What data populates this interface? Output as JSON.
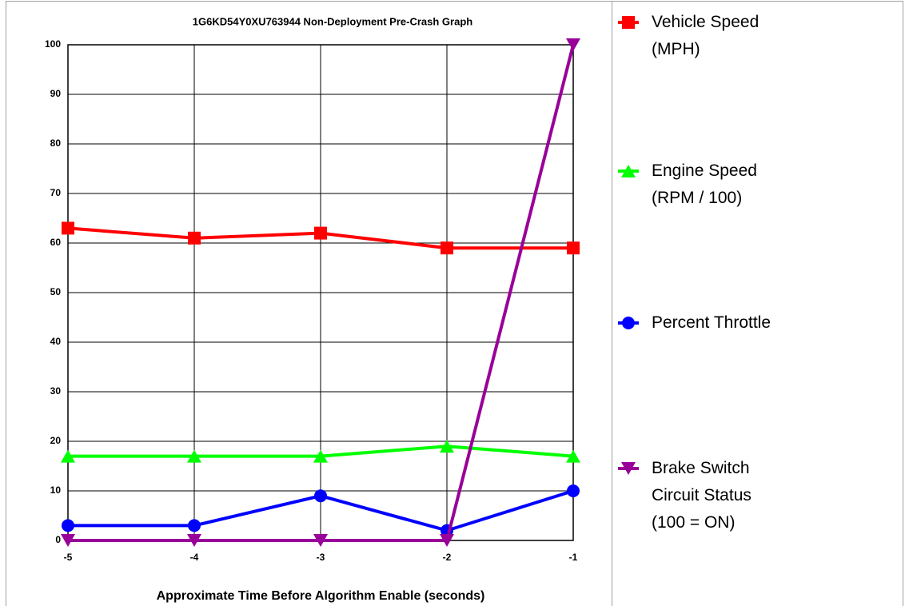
{
  "chart_data": {
    "type": "line",
    "title": "1G6KD54Y0XU763944 Non-Deployment Pre-Crash Graph",
    "x_label": "Approximate Time Before Algorithm Enable (seconds)",
    "x": [
      -5,
      -4,
      -3,
      -2,
      -1
    ],
    "xlim": [
      -5,
      -1
    ],
    "xticks": [
      -5,
      -4,
      -3,
      -2,
      -1
    ],
    "ylim": [
      0,
      100
    ],
    "yticks": [
      0,
      10,
      20,
      30,
      40,
      50,
      60,
      70,
      80,
      90,
      100
    ],
    "grid": true,
    "legend": "right",
    "series": [
      {
        "name": "Vehicle Speed (MPH)",
        "color": "#ff0000",
        "marker": "square",
        "values": [
          63,
          61,
          62,
          59,
          59
        ]
      },
      {
        "name": "Engine Speed (RPM / 100)",
        "color": "#00ff00",
        "marker": "triangle-up",
        "values": [
          17,
          17,
          17,
          19,
          17
        ]
      },
      {
        "name": "Percent Throttle",
        "color": "#0000ff",
        "marker": "circle",
        "values": [
          3,
          3,
          9,
          2,
          10
        ]
      },
      {
        "name": "Brake Switch Circuit Status (100 = ON)",
        "color": "#990099",
        "marker": "triangle-down",
        "values": [
          0,
          0,
          0,
          0,
          100
        ]
      }
    ]
  }
}
